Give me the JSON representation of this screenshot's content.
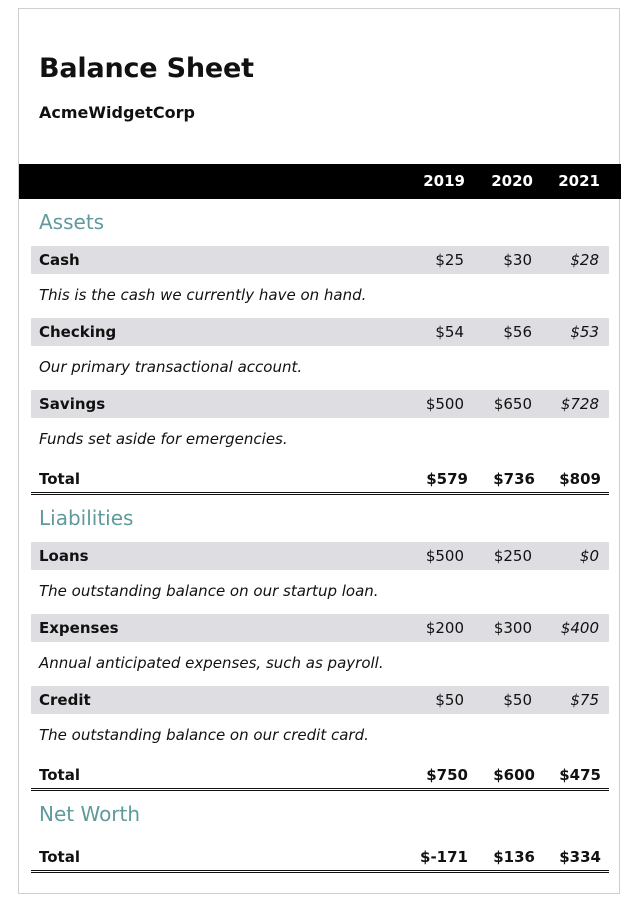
{
  "title": "Balance Sheet",
  "company": "AcmeWidgetCorp",
  "years": [
    "2019",
    "2020",
    "2021"
  ],
  "sections": [
    {
      "name": "Assets",
      "items": [
        {
          "label": "Cash",
          "values": [
            "$25",
            "$30",
            "$28"
          ],
          "description": "This is the cash we currently have on hand."
        },
        {
          "label": "Checking",
          "values": [
            "$54",
            "$56",
            "$53"
          ],
          "description": "Our primary transactional account."
        },
        {
          "label": "Savings",
          "values": [
            "$500",
            "$650",
            "$728"
          ],
          "description": "Funds set aside for emergencies."
        }
      ],
      "total": {
        "label": "Total",
        "values": [
          "$579",
          "$736",
          "$809"
        ]
      }
    },
    {
      "name": "Liabilities",
      "items": [
        {
          "label": "Loans",
          "values": [
            "$500",
            "$250",
            "$0"
          ],
          "description": "The outstanding balance on our startup loan."
        },
        {
          "label": "Expenses",
          "values": [
            "$200",
            "$300",
            "$400"
          ],
          "description": "Annual anticipated expenses, such as payroll."
        },
        {
          "label": "Credit",
          "values": [
            "$50",
            "$50",
            "$75"
          ],
          "description": "The outstanding balance on our credit card."
        }
      ],
      "total": {
        "label": "Total",
        "values": [
          "$750",
          "$600",
          "$475"
        ]
      }
    },
    {
      "name": "Net Worth",
      "items": [],
      "total": {
        "label": "Total",
        "values": [
          "$-171",
          "$136",
          "$334"
        ]
      }
    }
  ]
}
